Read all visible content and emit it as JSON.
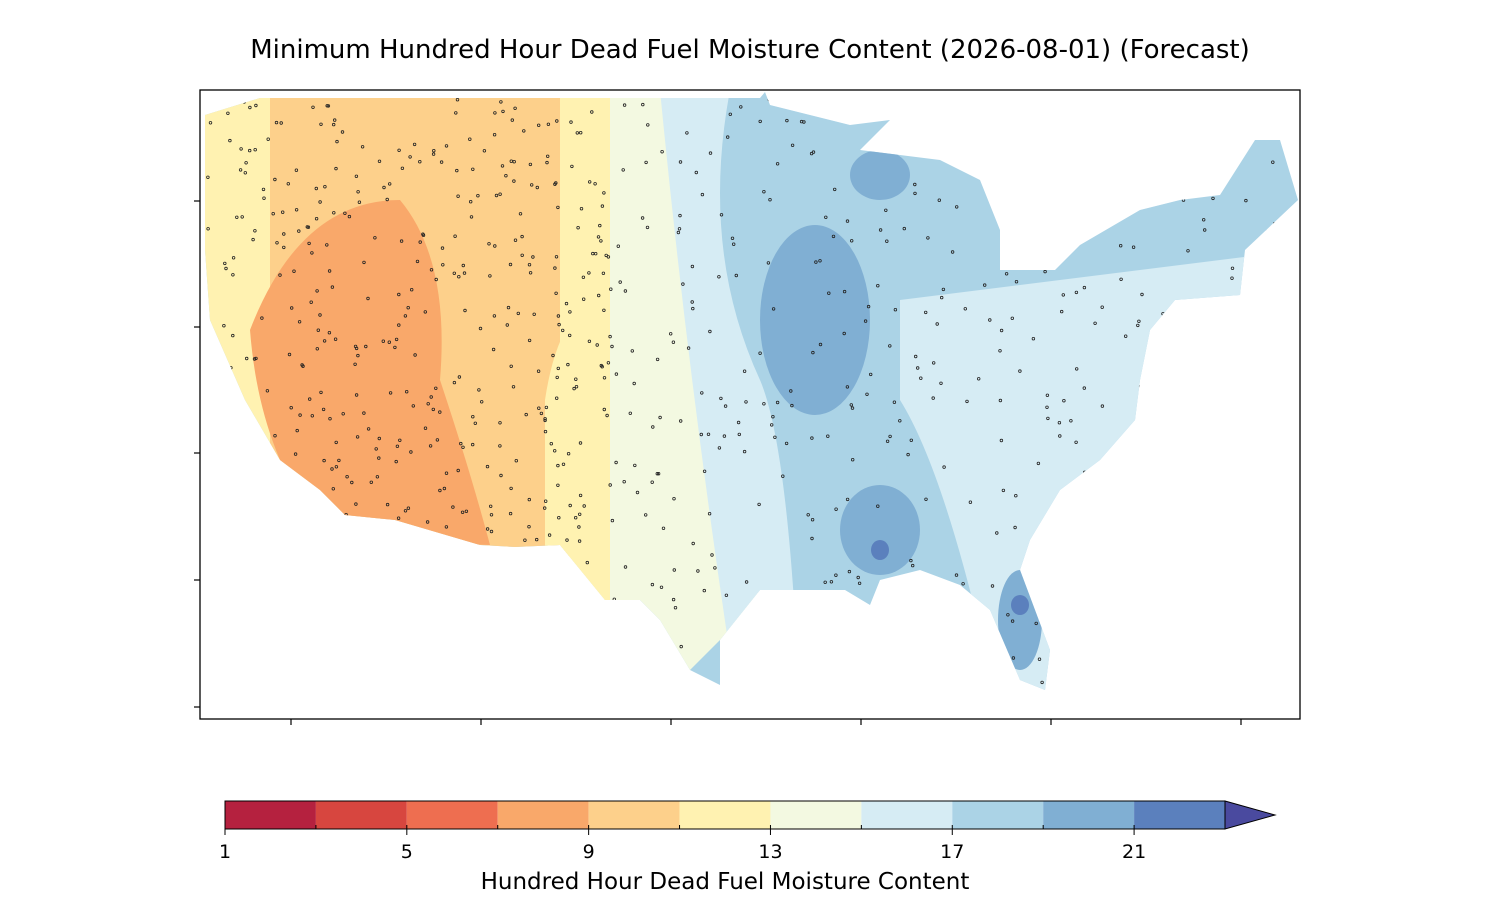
{
  "title": "Minimum Hundred Hour Dead Fuel Moisture Content (2026-08-01) (Forecast)",
  "colorbar": {
    "label": "Hundred Hour Dead Fuel Moisture Content",
    "levels": [
      1,
      3,
      5,
      7,
      9,
      11,
      13,
      15,
      17,
      19,
      21,
      23
    ],
    "colors": [
      "#b5213f",
      "#d7463f",
      "#ee6e50",
      "#f9a86a",
      "#fdd08b",
      "#fff2b1",
      "#f3f9e1",
      "#d6ecf4",
      "#abd3e6",
      "#80afd3",
      "#5b80bd"
    ],
    "extend_color": "#4a4a9f",
    "ticks": [
      1,
      5,
      9,
      13,
      17,
      21
    ]
  }
}
